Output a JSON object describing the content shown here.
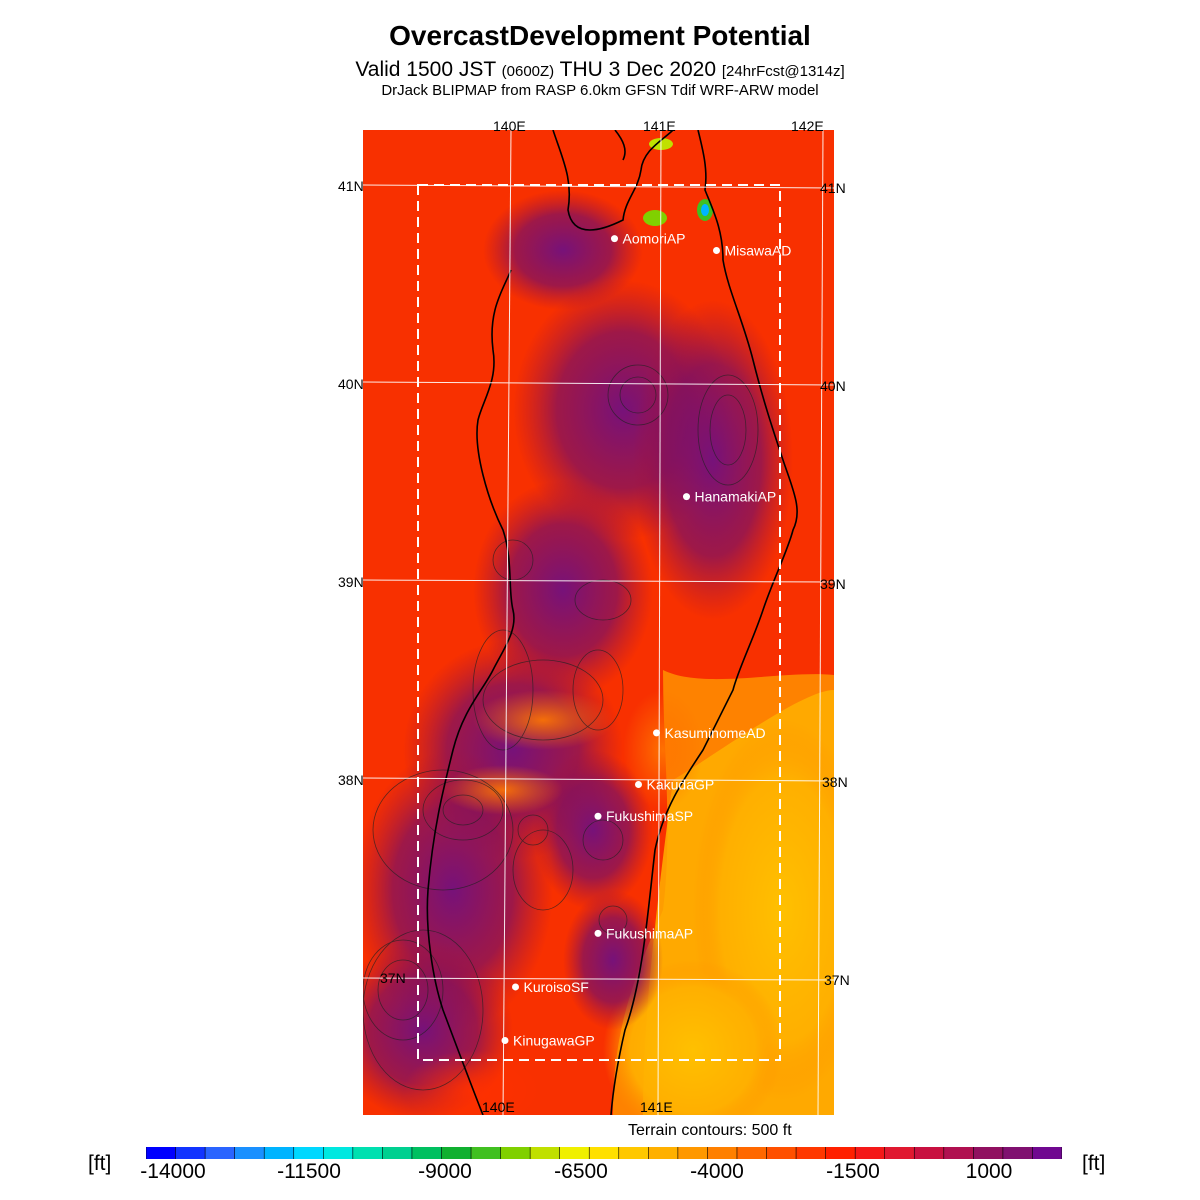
{
  "header": {
    "title": "OvercastDevelopment Potential",
    "valid_a": "Valid 1500 JST ",
    "valid_b": "(0600Z)",
    "valid_c": " THU 3 Dec 2020 ",
    "valid_d": "[24hrFcst@1314z]",
    "subtitle": "DrJack BLIPMAP from RASP 6.0km GFSN Tdif WRF-ARW model"
  },
  "map": {
    "lon_labels_top": [
      "140E",
      "141E",
      "142E"
    ],
    "lon_labels_bottom": [
      "140E",
      "141E"
    ],
    "lat_labels_left": [
      "41N",
      "40N",
      "39N",
      "38N",
      "37N"
    ],
    "lat_labels_right": [
      "41N",
      "40N",
      "39N",
      "38N",
      "37N"
    ],
    "stations": [
      {
        "name": "AomoriAP",
        "lon": 140.69,
        "lat": 40.73
      },
      {
        "name": "MisawaAD",
        "lon": 141.37,
        "lat": 40.67
      },
      {
        "name": "HanamakiAP",
        "lon": 141.17,
        "lat": 39.43
      },
      {
        "name": "KasuminomeAD",
        "lon": 140.97,
        "lat": 38.24
      },
      {
        "name": "KakudaGP",
        "lon": 140.85,
        "lat": 37.98
      },
      {
        "name": "FukushimaSP",
        "lon": 140.58,
        "lat": 37.82
      },
      {
        "name": "FukushimaAP",
        "lon": 140.58,
        "lat": 37.23
      },
      {
        "name": "KuroisoSF",
        "lon": 140.03,
        "lat": 36.96
      },
      {
        "name": "KinugawaGP",
        "lon": 139.96,
        "lat": 36.69
      }
    ],
    "terrain_note": "Terrain contours: 500 ft"
  },
  "colorbar": {
    "unit": "[ft]",
    "labels": [
      "-14000",
      "-11500",
      "-9000",
      "-6500",
      "-4000",
      "-1500",
      "1000"
    ],
    "colors": [
      "#0000ff",
      "#1234ff",
      "#2a64ff",
      "#1a90ff",
      "#00b4ff",
      "#00d8ff",
      "#00e8e0",
      "#00e0b0",
      "#00d090",
      "#00c060",
      "#10b030",
      "#40c020",
      "#80d000",
      "#c0e000",
      "#f0f000",
      "#ffe000",
      "#ffc800",
      "#ffb000",
      "#ff9800",
      "#ff8000",
      "#ff6800",
      "#ff5000",
      "#ff3800",
      "#ff2000",
      "#f41818",
      "#e01830",
      "#c81040",
      "#b01050",
      "#901060",
      "#801070",
      "#700890"
    ]
  }
}
